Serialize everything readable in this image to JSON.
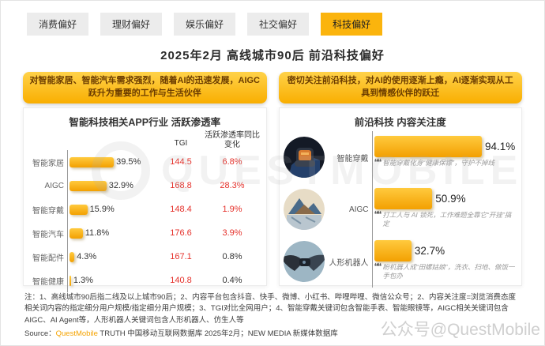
{
  "header": {
    "tabs": [
      {
        "label": "消费偏好",
        "active": false
      },
      {
        "label": "理财偏好",
        "active": false
      },
      {
        "label": "娱乐偏好",
        "active": false
      },
      {
        "label": "社交偏好",
        "active": false
      },
      {
        "label": "科技偏好",
        "active": true
      }
    ],
    "title": "2025年2月 高线城市90后 前沿科技偏好"
  },
  "left_panel": {
    "callout": "对智能家居、智能汽车需求强烈，随着AI的迅速发展，AIGC跃升为重要的工作与生活伙伴",
    "col_tgi": "TGI",
    "col_change": "活跃渗透率同比变化"
  },
  "right_panel": {
    "callout": "密切关注前沿科技，对AI的使用逐渐上瘾，AI逐渐实现从工具到情感伙伴的跃迁"
  },
  "chart_data": [
    {
      "type": "bar",
      "orientation": "horizontal",
      "title": "智能科技相关APP行业 活跃渗透率",
      "categories": [
        "智能家居",
        "AIGC",
        "智能穿戴",
        "智能汽车",
        "智能配件",
        "智能健康"
      ],
      "values": [
        39.5,
        32.9,
        15.9,
        11.8,
        4.3,
        1.3
      ],
      "value_unit": "%",
      "extra_columns": [
        "TGI",
        "活跃渗透率同比变化"
      ],
      "rows": [
        {
          "label": "智能家居",
          "pct": 39.5,
          "pct_label": "39.5%",
          "tgi": "144.5",
          "change": "6.8%",
          "change_color": "#E5312B"
        },
        {
          "label": "AIGC",
          "pct": 32.9,
          "pct_label": "32.9%",
          "tgi": "168.8",
          "change": "28.3%",
          "change_color": "#E5312B"
        },
        {
          "label": "智能穿戴",
          "pct": 15.9,
          "pct_label": "15.9%",
          "tgi": "148.4",
          "change": "1.9%",
          "change_color": "#E5312B"
        },
        {
          "label": "智能汽车",
          "pct": 11.8,
          "pct_label": "11.8%",
          "tgi": "176.6",
          "change": "3.9%",
          "change_color": "#E5312B"
        },
        {
          "label": "智能配件",
          "pct": 4.3,
          "pct_label": "4.3%",
          "tgi": "167.1",
          "change": "0.8%",
          "change_color": "#333333"
        },
        {
          "label": "智能健康",
          "pct": 1.3,
          "pct_label": "1.3%",
          "tgi": "140.8",
          "change": "0.4%",
          "change_color": "#333333"
        }
      ]
    },
    {
      "type": "bar",
      "orientation": "horizontal",
      "title": "前沿科技 内容关注度",
      "categories": [
        "智能穿戴",
        "AIGC",
        "人形机器人"
      ],
      "values": [
        94.1,
        50.9,
        32.7
      ],
      "value_unit": "%",
      "rows": [
        {
          "label": "智能穿戴",
          "pct": 94.1,
          "pct_label": "94.1%",
          "quote": "智能穿戴化身“健康保镖”，守护不掉线",
          "icon": "smartwatch-photo"
        },
        {
          "label": "AIGC",
          "pct": 50.9,
          "pct_label": "50.9%",
          "quote": "打工人与 AI 锁死，工作难题全靠它“开挂”搞定",
          "icon": "ai-art-photo"
        },
        {
          "label": "人形机器人",
          "pct": 32.7,
          "pct_label": "32.7%",
          "quote": "盼机器人成“田螺姑娘”，洗衣、扫地、做饭一手包办",
          "icon": "robot-handshake-photo"
        }
      ]
    }
  ],
  "footer": {
    "note": "注：1、高线城市90后指二线及以上城市90后；2、内容平台包含抖音、快手、微博、小红书、哔哩哔哩、微信公众号；2、内容关注度=浏览消费态度相关词内容的指定细分用户规模/指定细分用户规模；3、TGI对比全网用户；4、智能穿戴关键词包含智能手表、智能眼镜等，AIGC相关关键词包含AIGC、AI Agent等，人形机器人关键词包含人形机器人、仿生人等",
    "source_prefix": "Source：",
    "source_brand": "QuestMobile",
    "source_rest": " TRUTH 中国移动互联网数据库 2025年2月；NEW MEDIA 新媒体数据库"
  },
  "watermarks": {
    "center": "QUESTMOBILE",
    "corner": "公众号@QuestMobile"
  },
  "colors": {
    "accent_yellow": "#FBB40D",
    "bar_gradient_top": "#FFCA3E",
    "bar_gradient_bottom": "#F3A001",
    "tgi_red": "#E5312B",
    "change_black": "#333333",
    "callout_text": "#6B3C00"
  }
}
